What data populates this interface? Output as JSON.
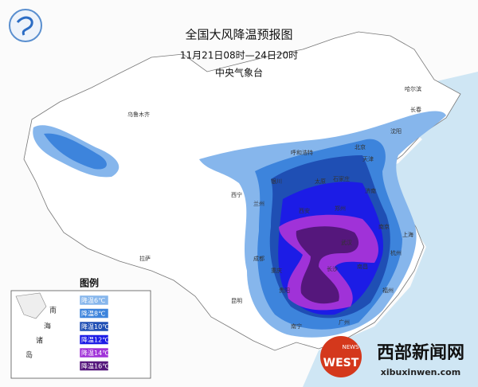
{
  "header": {
    "title": "全国大风降温预报图",
    "period": "11月21日08时—24日20时",
    "issuer": "中央气象台"
  },
  "cities": [
    "乌鲁木齐",
    "哈尔滨",
    "长春",
    "沈阳",
    "呼和浩特",
    "北京",
    "天津",
    "石家庄",
    "太原",
    "济南",
    "银川",
    "西宁",
    "兰州",
    "西安",
    "郑州",
    "拉萨",
    "成都",
    "重庆",
    "武汉",
    "南京",
    "上海",
    "杭州",
    "长沙",
    "南昌",
    "贵阳",
    "昆明",
    "福州",
    "广州",
    "南宁"
  ],
  "legend": {
    "title": "图例",
    "items": [
      {
        "label": "降温6℃",
        "color": "#86b6ec"
      },
      {
        "label": "降温8℃",
        "color": "#3d84dc"
      },
      {
        "label": "降温10℃",
        "color": "#1f4fb4"
      },
      {
        "label": "降温12℃",
        "color": "#1c1ce6"
      },
      {
        "label": "降温14℃",
        "color": "#a032d8"
      },
      {
        "label": "降温16℃",
        "color": "#55177c"
      }
    ]
  },
  "inset": [
    "南",
    "海",
    "诸",
    "岛"
  ],
  "watermark": {
    "name": "西部新闻网",
    "url": "xibuxinwen.com",
    "logo_big": "WEST",
    "logo_small": "NEWS"
  }
}
